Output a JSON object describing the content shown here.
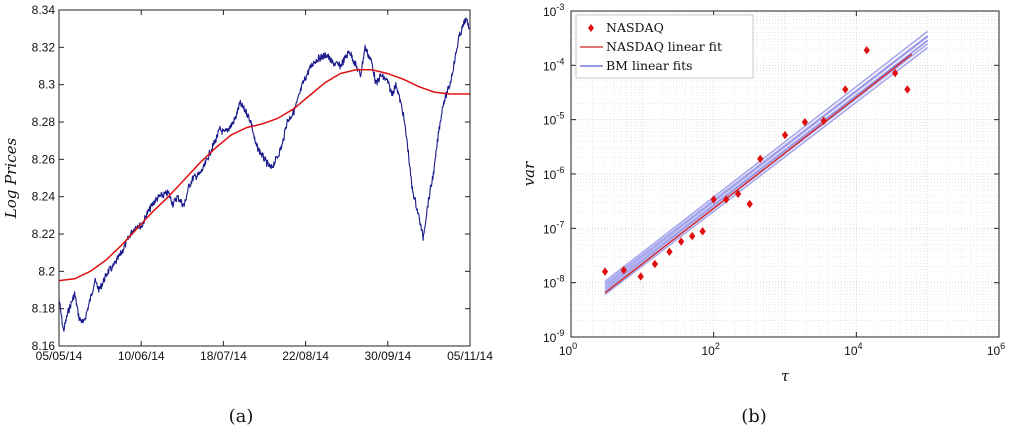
{
  "chart_data": [
    {
      "type": "line",
      "caption": "(a)",
      "ylabel": "Log Prices",
      "xlabel": "",
      "x_tick_labels": [
        "05/05/14",
        "10/06/14",
        "18/07/14",
        "22/08/14",
        "30/09/14",
        "05/11/14"
      ],
      "x_range": [
        "2014-05-05",
        "2014-11-05"
      ],
      "ylim": [
        8.16,
        8.34
      ],
      "y_ticks": [
        "8.16",
        "8.18",
        "8.2",
        "8.22",
        "8.24",
        "8.26",
        "8.28",
        "8.3",
        "8.32",
        "8.34"
      ],
      "grid": false,
      "series": [
        {
          "color": "#1a1a8c",
          "points": [
            [
              "2014-05-05",
              8.185
            ],
            [
              "2014-05-07",
              8.168
            ],
            [
              "2014-05-09",
              8.178
            ],
            [
              "2014-05-12",
              8.188
            ],
            [
              "2014-05-14",
              8.175
            ],
            [
              "2014-05-16",
              8.172
            ],
            [
              "2014-05-19",
              8.185
            ],
            [
              "2014-05-21",
              8.195
            ],
            [
              "2014-05-23",
              8.19
            ],
            [
              "2014-05-27",
              8.2
            ],
            [
              "2014-05-29",
              8.202
            ],
            [
              "2014-06-02",
              8.21
            ],
            [
              "2014-06-04",
              8.215
            ],
            [
              "2014-06-06",
              8.22
            ],
            [
              "2014-06-09",
              8.225
            ],
            [
              "2014-06-11",
              8.224
            ],
            [
              "2014-06-13",
              8.23
            ],
            [
              "2014-06-17",
              8.238
            ],
            [
              "2014-06-19",
              8.24
            ],
            [
              "2014-06-23",
              8.242
            ],
            [
              "2014-06-25",
              8.236
            ],
            [
              "2014-06-27",
              8.24
            ],
            [
              "2014-06-30",
              8.235
            ],
            [
              "2014-07-02",
              8.245
            ],
            [
              "2014-07-04",
              8.25
            ],
            [
              "2014-07-07",
              8.252
            ],
            [
              "2014-07-09",
              8.256
            ],
            [
              "2014-07-11",
              8.262
            ],
            [
              "2014-07-14",
              8.27
            ],
            [
              "2014-07-16",
              8.276
            ],
            [
              "2014-07-18",
              8.274
            ],
            [
              "2014-07-21",
              8.278
            ],
            [
              "2014-07-23",
              8.282
            ],
            [
              "2014-07-25",
              8.29
            ],
            [
              "2014-07-28",
              8.285
            ],
            [
              "2014-07-30",
              8.28
            ],
            [
              "2014-08-01",
              8.268
            ],
            [
              "2014-08-04",
              8.262
            ],
            [
              "2014-08-06",
              8.258
            ],
            [
              "2014-08-08",
              8.255
            ],
            [
              "2014-08-11",
              8.262
            ],
            [
              "2014-08-13",
              8.268
            ],
            [
              "2014-08-15",
              8.28
            ],
            [
              "2014-08-18",
              8.285
            ],
            [
              "2014-08-20",
              8.292
            ],
            [
              "2014-08-22",
              8.3
            ],
            [
              "2014-08-25",
              8.308
            ],
            [
              "2014-08-27",
              8.312
            ],
            [
              "2014-08-29",
              8.314
            ],
            [
              "2014-09-02",
              8.316
            ],
            [
              "2014-09-04",
              8.312
            ],
            [
              "2014-09-08",
              8.31
            ],
            [
              "2014-09-10",
              8.314
            ],
            [
              "2014-09-12",
              8.318
            ],
            [
              "2014-09-15",
              8.31
            ],
            [
              "2014-09-17",
              8.305
            ],
            [
              "2014-09-19",
              8.32
            ],
            [
              "2014-09-22",
              8.312
            ],
            [
              "2014-09-24",
              8.3
            ],
            [
              "2014-09-26",
              8.305
            ],
            [
              "2014-09-29",
              8.302
            ],
            [
              "2014-10-01",
              8.295
            ],
            [
              "2014-10-03",
              8.3
            ],
            [
              "2014-10-06",
              8.285
            ],
            [
              "2014-10-08",
              8.268
            ],
            [
              "2014-10-10",
              8.245
            ],
            [
              "2014-10-13",
              8.23
            ],
            [
              "2014-10-15",
              8.218
            ],
            [
              "2014-10-17",
              8.235
            ],
            [
              "2014-10-20",
              8.255
            ],
            [
              "2014-10-22",
              8.275
            ],
            [
              "2014-10-24",
              8.29
            ],
            [
              "2014-10-27",
              8.3
            ],
            [
              "2014-10-29",
              8.312
            ],
            [
              "2014-10-31",
              8.325
            ],
            [
              "2014-11-03",
              8.335
            ],
            [
              "2014-11-05",
              8.33
            ]
          ]
        },
        {
          "color": "#e01010",
          "points": [
            [
              "2014-05-05",
              8.195
            ],
            [
              "2014-05-12",
              8.196
            ],
            [
              "2014-05-19",
              8.2
            ],
            [
              "2014-05-26",
              8.206
            ],
            [
              "2014-06-02",
              8.214
            ],
            [
              "2014-06-09",
              8.223
            ],
            [
              "2014-06-16",
              8.232
            ],
            [
              "2014-06-23",
              8.24
            ],
            [
              "2014-06-30",
              8.249
            ],
            [
              "2014-07-07",
              8.258
            ],
            [
              "2014-07-14",
              8.266
            ],
            [
              "2014-07-21",
              8.273
            ],
            [
              "2014-07-28",
              8.277
            ],
            [
              "2014-08-04",
              8.279
            ],
            [
              "2014-08-11",
              8.282
            ],
            [
              "2014-08-18",
              8.287
            ],
            [
              "2014-08-25",
              8.294
            ],
            [
              "2014-09-01",
              8.301
            ],
            [
              "2014-09-08",
              8.306
            ],
            [
              "2014-09-15",
              8.308
            ],
            [
              "2014-09-22",
              8.308
            ],
            [
              "2014-09-29",
              8.306
            ],
            [
              "2014-10-06",
              8.303
            ],
            [
              "2014-10-13",
              8.299
            ],
            [
              "2014-10-20",
              8.296
            ],
            [
              "2014-10-27",
              8.295
            ],
            [
              "2014-11-05",
              8.295
            ]
          ]
        }
      ]
    },
    {
      "type": "scatter",
      "caption": "(b)",
      "xlabel": "τ",
      "ylabel": "var",
      "xscale": "log",
      "yscale": "log",
      "xlim": [
        1,
        1000000
      ],
      "ylim": [
        1e-09,
        0.001
      ],
      "x_ticks": [
        {
          "base": "10",
          "exp": "0"
        },
        {
          "base": "10",
          "exp": "2"
        },
        {
          "base": "10",
          "exp": "4"
        },
        {
          "base": "10",
          "exp": "6"
        }
      ],
      "y_ticks": [
        {
          "base": "10",
          "exp": "-9"
        },
        {
          "base": "10",
          "exp": "-8"
        },
        {
          "base": "10",
          "exp": "-7"
        },
        {
          "base": "10",
          "exp": "-6"
        },
        {
          "base": "10",
          "exp": "-5"
        },
        {
          "base": "10",
          "exp": "-4"
        },
        {
          "base": "10",
          "exp": "-3"
        }
      ],
      "grid": true,
      "legend_position": "top-left",
      "series": [
        {
          "name": "NASDAQ",
          "marker": "diamond",
          "color": "#e01010",
          "points": [
            [
              3,
              1.6e-08
            ],
            [
              5.5,
              1.7e-08
            ],
            [
              9.5,
              1.3e-08
            ],
            [
              15,
              2.2e-08
            ],
            [
              24,
              3.7e-08
            ],
            [
              35,
              5.7e-08
            ],
            [
              50,
              7.2e-08
            ],
            [
              70,
              8.8e-08
            ],
            [
              100,
              3.4e-07
            ],
            [
              150,
              3.4e-07
            ],
            [
              220,
              4.3e-07
            ],
            [
              320,
              2.8e-07
            ],
            [
              450,
              1.9e-06
            ],
            [
              1000,
              5.2e-06
            ],
            [
              1900,
              9e-06
            ],
            [
              3500,
              9.5e-06
            ],
            [
              7000,
              3.6e-05
            ],
            [
              14000,
              0.00019
            ],
            [
              35000,
              7.2e-05
            ],
            [
              52000,
              3.6e-05
            ]
          ]
        },
        {
          "name": "NASDAQ linear fit",
          "type": "line",
          "color": "#d42020",
          "points": [
            [
              3,
              6.5e-09
            ],
            [
              60000,
              0.00016
            ]
          ]
        },
        {
          "name": "BM linear fits",
          "type": "line",
          "color": "#8a8ae8",
          "points": [
            [
              3,
              8e-09
            ],
            [
              100000,
              0.0003
            ]
          ]
        }
      ]
    }
  ]
}
